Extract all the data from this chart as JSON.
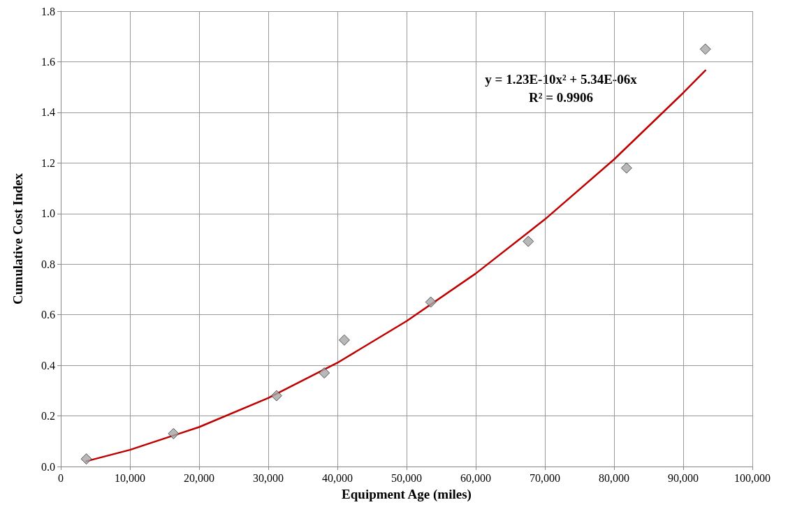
{
  "chart_data": {
    "type": "scatter",
    "xlabel": "Equipment Age (miles)",
    "ylabel": "Cumulative Cost Index",
    "annotations": [
      "y = 1.23E-10x² + 5.34E-06x",
      "R² = 0.9906"
    ],
    "xlim": [
      0,
      100000
    ],
    "xticks": [
      0,
      {
        "value": 10000,
        "label": "10,000"
      },
      {
        "value": 20000,
        "label": "20,000"
      },
      {
        "value": 30000,
        "label": "30,000"
      },
      {
        "value": 40000,
        "label": "40,000"
      },
      {
        "value": 50000,
        "label": "50,000"
      },
      {
        "value": 60000,
        "label": "60,000"
      },
      {
        "value": 70000,
        "label": "70,000"
      },
      {
        "value": 80000,
        "label": "80,000"
      },
      {
        "value": 90000,
        "label": "90,000"
      },
      {
        "value": 100000,
        "label": "100,000"
      }
    ],
    "ylim": [
      0,
      1.8
    ],
    "yticks": [
      {
        "value": 0,
        "label": "0.0"
      },
      {
        "value": 0.2,
        "label": "0.2"
      },
      {
        "value": 0.4,
        "label": "0.4"
      },
      {
        "value": 0.6,
        "label": "0.6"
      },
      {
        "value": 0.8,
        "label": "0.8"
      },
      {
        "value": 1,
        "label": "1.0"
      },
      {
        "value": 1.2,
        "label": "1.2"
      },
      {
        "value": 1.4,
        "label": "1.4"
      },
      {
        "value": 1.6,
        "label": "1.6"
      },
      {
        "value": 1.8,
        "label": "1.8"
      }
    ],
    "grid": true,
    "series": [
      {
        "marker": "diamond",
        "color": "#a6a6a6",
        "x": [
          3700,
          16300,
          31200,
          38100,
          41000,
          53500,
          67600,
          81800,
          93200
        ],
        "values": [
          0.03,
          0.13,
          0.28,
          0.37,
          0.5,
          0.65,
          0.89,
          1.18,
          1.65
        ]
      },
      {
        "type": "line",
        "marker": "none",
        "line_style": "solid",
        "color": "#c00000",
        "x": [
          3700,
          10000,
          20000,
          30000,
          40000,
          50000,
          60000,
          70000,
          80000,
          90000,
          93200
        ],
        "values": [
          0.021,
          0.066,
          0.156,
          0.271,
          0.41,
          0.575,
          0.763,
          0.977,
          1.214,
          1.477,
          1.566
        ]
      }
    ]
  }
}
